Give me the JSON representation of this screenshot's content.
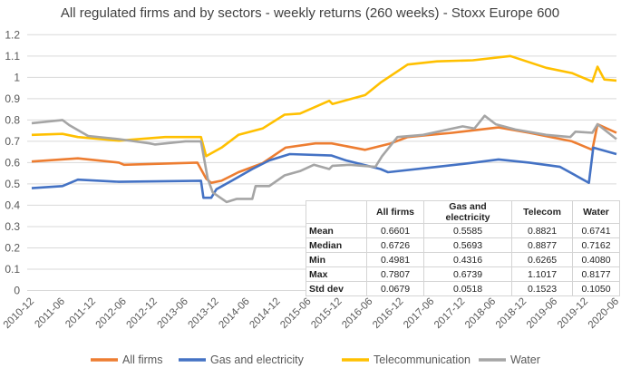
{
  "chart_data": {
    "type": "line",
    "title": "All regulated firms and by sectors - weekly returns (260 weeks) - Stoxx Europe 600",
    "xlabel": "",
    "ylabel": "",
    "ylim": [
      0,
      1.2
    ],
    "yticks": [
      "0",
      "0.1",
      "0.2",
      "0.3",
      "0.4",
      "0.5",
      "0.6",
      "0.7",
      "0.8",
      "0.9",
      "1",
      "1.1",
      "1.2"
    ],
    "xlim": [
      "2010-12-01",
      "2020-06-01"
    ],
    "xticks": [
      "2010-12",
      "2011-06",
      "2011-12",
      "2012-06",
      "2012-12",
      "2013-06",
      "2013-12",
      "2014-06",
      "2014-12",
      "2015-06",
      "2015-12",
      "2016-06",
      "2016-12",
      "2017-06",
      "2017-12",
      "2018-06",
      "2018-12",
      "2019-06",
      "2019-12",
      "2020-06"
    ],
    "grid": true,
    "legend_position": "bottom",
    "series": [
      {
        "name": "All firms",
        "color": "#ed7d31",
        "points": [
          [
            "2010-12-01",
            0.605
          ],
          [
            "2011-09-01",
            0.62
          ],
          [
            "2012-05-01",
            0.6
          ],
          [
            "2012-06-01",
            0.59
          ],
          [
            "2013-08-10",
            0.6
          ],
          [
            "2013-10-01",
            0.525
          ],
          [
            "2013-11-01",
            0.505
          ],
          [
            "2014-01-01",
            0.515
          ],
          [
            "2014-04-10",
            0.555
          ],
          [
            "2014-09-01",
            0.597
          ],
          [
            "2015-01-15",
            0.67
          ],
          [
            "2015-07-10",
            0.69
          ],
          [
            "2015-10-15",
            0.69
          ],
          [
            "2016-05-01",
            0.66
          ],
          [
            "2016-10-01",
            0.69
          ],
          [
            "2017-01-10",
            0.72
          ],
          [
            "2017-10-01",
            0.74
          ],
          [
            "2018-07-01",
            0.765
          ],
          [
            "2019-01-01",
            0.74
          ],
          [
            "2019-09-10",
            0.7
          ],
          [
            "2020-01-10",
            0.66
          ],
          [
            "2020-02-10",
            0.78
          ],
          [
            "2020-06-01",
            0.74
          ]
        ]
      },
      {
        "name": "Gas and electricity",
        "color": "#4472c4",
        "points": [
          [
            "2010-12-01",
            0.48
          ],
          [
            "2011-06-01",
            0.49
          ],
          [
            "2011-09-01",
            0.52
          ],
          [
            "2012-05-01",
            0.51
          ],
          [
            "2013-09-01",
            0.515
          ],
          [
            "2013-09-15",
            0.435
          ],
          [
            "2013-11-01",
            0.435
          ],
          [
            "2013-12-01",
            0.475
          ],
          [
            "2014-03-01",
            0.515
          ],
          [
            "2014-07-01",
            0.57
          ],
          [
            "2014-10-10",
            0.61
          ],
          [
            "2015-02-10",
            0.64
          ],
          [
            "2015-10-15",
            0.633
          ],
          [
            "2016-01-10",
            0.61
          ],
          [
            "2016-08-01",
            0.57
          ],
          [
            "2016-09-15",
            0.555
          ],
          [
            "2017-07-01",
            0.58
          ],
          [
            "2018-01-10",
            0.597
          ],
          [
            "2018-07-01",
            0.615
          ],
          [
            "2019-01-01",
            0.6
          ],
          [
            "2019-07-01",
            0.58
          ],
          [
            "2019-12-20",
            0.505
          ],
          [
            "2020-01-15",
            0.67
          ],
          [
            "2020-06-01",
            0.64
          ]
        ]
      },
      {
        "name": "Telecommunication",
        "color": "#ffc000",
        "points": [
          [
            "2010-12-01",
            0.73
          ],
          [
            "2011-06-01",
            0.735
          ],
          [
            "2011-09-01",
            0.72
          ],
          [
            "2012-05-01",
            0.703
          ],
          [
            "2013-02-01",
            0.72
          ],
          [
            "2013-09-01",
            0.72
          ],
          [
            "2013-10-01",
            0.63
          ],
          [
            "2014-01-01",
            0.67
          ],
          [
            "2014-04-10",
            0.73
          ],
          [
            "2014-09-01",
            0.76
          ],
          [
            "2015-01-10",
            0.825
          ],
          [
            "2015-04-10",
            0.83
          ],
          [
            "2015-10-01",
            0.89
          ],
          [
            "2015-10-20",
            0.875
          ],
          [
            "2016-05-01",
            0.917
          ],
          [
            "2016-08-01",
            0.975
          ],
          [
            "2017-01-10",
            1.06
          ],
          [
            "2017-07-01",
            1.075
          ],
          [
            "2018-02-01",
            1.08
          ],
          [
            "2018-09-10",
            1.1
          ],
          [
            "2019-04-10",
            1.045
          ],
          [
            "2019-09-10",
            1.02
          ],
          [
            "2020-01-10",
            0.98
          ],
          [
            "2020-02-10",
            1.05
          ],
          [
            "2020-03-20",
            0.99
          ],
          [
            "2020-06-01",
            0.985
          ]
        ]
      },
      {
        "name": "Water",
        "color": "#a5a5a5",
        "points": [
          [
            "2010-12-01",
            0.785
          ],
          [
            "2011-06-01",
            0.8
          ],
          [
            "2011-07-10",
            0.776
          ],
          [
            "2011-11-01",
            0.725
          ],
          [
            "2012-05-01",
            0.71
          ],
          [
            "2012-11-01",
            0.69
          ],
          [
            "2012-12-01",
            0.685
          ],
          [
            "2013-06-01",
            0.7
          ],
          [
            "2013-09-01",
            0.7
          ],
          [
            "2013-10-10",
            0.525
          ],
          [
            "2013-11-10",
            0.46
          ],
          [
            "2014-02-01",
            0.415
          ],
          [
            "2014-04-01",
            0.43
          ],
          [
            "2014-07-01",
            0.43
          ],
          [
            "2014-07-20",
            0.49
          ],
          [
            "2014-10-10",
            0.49
          ],
          [
            "2015-01-10",
            0.54
          ],
          [
            "2015-04-10",
            0.56
          ],
          [
            "2015-07-01",
            0.59
          ],
          [
            "2015-10-01",
            0.57
          ],
          [
            "2015-10-20",
            0.585
          ],
          [
            "2016-02-01",
            0.59
          ],
          [
            "2016-07-01",
            0.58
          ],
          [
            "2016-08-10",
            0.63
          ],
          [
            "2016-11-10",
            0.72
          ],
          [
            "2017-04-10",
            0.73
          ],
          [
            "2017-12-01",
            0.77
          ],
          [
            "2018-02-10",
            0.76
          ],
          [
            "2018-04-10",
            0.82
          ],
          [
            "2018-06-15",
            0.78
          ],
          [
            "2018-10-10",
            0.755
          ],
          [
            "2019-04-10",
            0.73
          ],
          [
            "2019-09-01",
            0.72
          ],
          [
            "2019-10-01",
            0.745
          ],
          [
            "2020-01-10",
            0.74
          ],
          [
            "2020-02-10",
            0.78
          ],
          [
            "2020-06-01",
            0.71
          ]
        ]
      }
    ],
    "table": {
      "columns": [
        "",
        "All firms",
        "Gas and electricity",
        "Telecom",
        "Water"
      ],
      "rows": [
        [
          "Mean",
          "0.6601",
          "0.5585",
          "0.8821",
          "0.6741"
        ],
        [
          "Median",
          "0.6726",
          "0.5693",
          "0.8877",
          "0.7162"
        ],
        [
          "Min",
          "0.4981",
          "0.4316",
          "0.6265",
          "0.4080"
        ],
        [
          "Max",
          "0.7807",
          "0.6739",
          "1.1017",
          "0.8177"
        ],
        [
          "Std dev",
          "0.0679",
          "0.0518",
          "0.1523",
          "0.1050"
        ]
      ]
    }
  }
}
